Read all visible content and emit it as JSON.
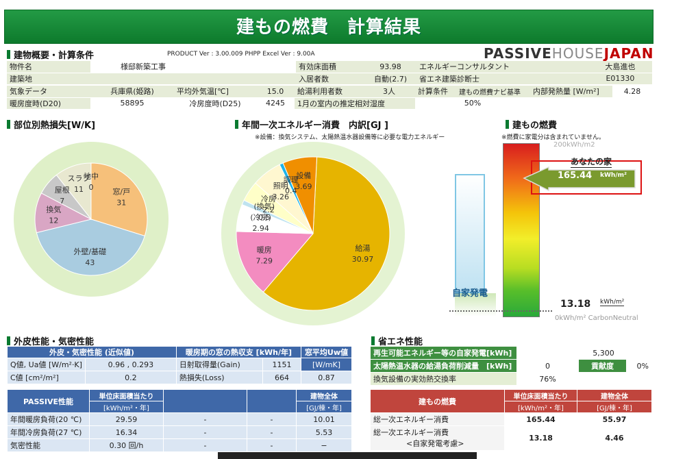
{
  "title": "建もの燃費　計算結果",
  "section1": {
    "title": "建物概要・計算条件",
    "product": "PRODUCT Ver : 3.00.009  PHPP Excel Ver : 9.00A",
    "logo": {
      "a": "PASSIVE",
      "b": "HOUSE",
      "c": "JAPAN"
    }
  },
  "cond": {
    "r1": [
      "物件名",
      "様邸新築工事",
      "有効床面積",
      "93.98",
      "エネルギーコンサルタント",
      "大島進也"
    ],
    "r2": [
      "建築地",
      "入居者数",
      "自動(2.7)",
      "省エネ建築診断士",
      "E01330"
    ],
    "r3": [
      "気象データ",
      "兵庫県(姫路)",
      "平均外気温[℃]",
      "15.0",
      "給湯利用者数",
      "3人",
      "計算条件",
      "建もの燃費ナビ基準",
      "内部発熱量 [W/m²]",
      "4.28"
    ],
    "r4": [
      "暖房度時(D20)",
      "58895",
      "冷房度時(D25)",
      "4245",
      "1月の室内の推定相対湿度",
      "50%"
    ]
  },
  "heatloss": {
    "title": "部位別熱損失[W/K]"
  },
  "energy": {
    "title": "年間一次エネルギー消費　内訳[GJ ]",
    "note": "※設備：換気システム、太陽熱温水器設備等に必要な電力エネルギー"
  },
  "fuel": {
    "title": "建もの燃費",
    "note": "※燃費に家電分は含まれていません。",
    "top": "200kWh/m2",
    "your_label": "あなたの家",
    "your_value": "165.44",
    "your_unit": "kWh/m²",
    "self_gen": "自家発電",
    "bottom_value": "13.18",
    "bottom_unit": "kWh/m²",
    "bottom_label": "0kWh/m² CarbonNeutral"
  },
  "envelope": {
    "title": "外皮性能・気密性能",
    "h": [
      "外皮・気密性能 (近似値)",
      "暖房期の窓の熱収支 [kWh/年]",
      "窓平均Uw値"
    ],
    "r1": [
      "Q値, Ua値 [W/m²·K]",
      "0.96 , 0.293",
      "日射取得量(Gain)",
      "1151",
      "[W/mK]"
    ],
    "r2": [
      "C値 [cm²/m²]",
      "0.2",
      "熱損失(Loss)",
      "664",
      "0.87"
    ]
  },
  "passive": {
    "h": [
      "PASSIVE性能",
      "単位床面積当たり",
      "[kWh/m²・年]",
      "建物全体",
      "[GJ/棟・年]"
    ],
    "rows": [
      [
        "年間暖房負荷(20 ℃)",
        "29.59",
        "-",
        "-",
        "10.01"
      ],
      [
        "年間冷房負荷(27 ℃)",
        "16.34",
        "-",
        "-",
        "5.53"
      ],
      [
        "気密性能",
        "0.30 回/h",
        "-",
        "-",
        "−"
      ]
    ]
  },
  "saving": {
    "title": "省エネ性能",
    "r1": [
      "再生可能エネルギー等の自家発電[kWh]",
      "5,300"
    ],
    "r2": [
      "太陽熱温水器の給湯負荷削減量　[kWh]",
      "0",
      "貢献度",
      "0%"
    ],
    "r3": [
      "換気設備の実効熱交換率",
      "76%"
    ]
  },
  "fuelTable": {
    "h": [
      "建もの燃費",
      "単位床面積当たり",
      "[kWh/m²・年]",
      "建物全体",
      "[GJ/棟・年]"
    ],
    "r1": [
      "総一次エネルギー消費",
      "165.44",
      "55.97"
    ],
    "r2a": "総一次エネルギー消費",
    "r2b": "<自家発電考慮>",
    "r2": [
      "13.18",
      "4.46"
    ]
  },
  "chart_data": [
    {
      "type": "pie",
      "title": "部位別熱損失[W/K]",
      "categories": [
        "窓/戸",
        "外壁/基礎",
        "換気",
        "屋根",
        "スラブ",
        "地中"
      ],
      "values": [
        31,
        43,
        12,
        7,
        11,
        0
      ],
      "colors": [
        "#f6c07a",
        "#a9cce0",
        "#d9a6c4",
        "#c8c8c8",
        "#e8e8d0",
        "#b7c9a3"
      ]
    },
    {
      "type": "pie",
      "title": "年間一次エネルギー消費　内訳[GJ ]",
      "categories": [
        "給湯",
        "暖房",
        "(冷房)",
        "(換気)",
        "冷房",
        "照明",
        "調理",
        "設備"
      ],
      "values": [
        30.97,
        7.29,
        2.94,
        0.5,
        2.2,
        3.26,
        0.4,
        3.69
      ],
      "colors": [
        "#e6b400",
        "#f38cc0",
        "#ffffff",
        "#bfe3ef",
        "#ffffc8",
        "#fff7d0",
        "#1fb4e8",
        "#f08f00"
      ]
    }
  ]
}
